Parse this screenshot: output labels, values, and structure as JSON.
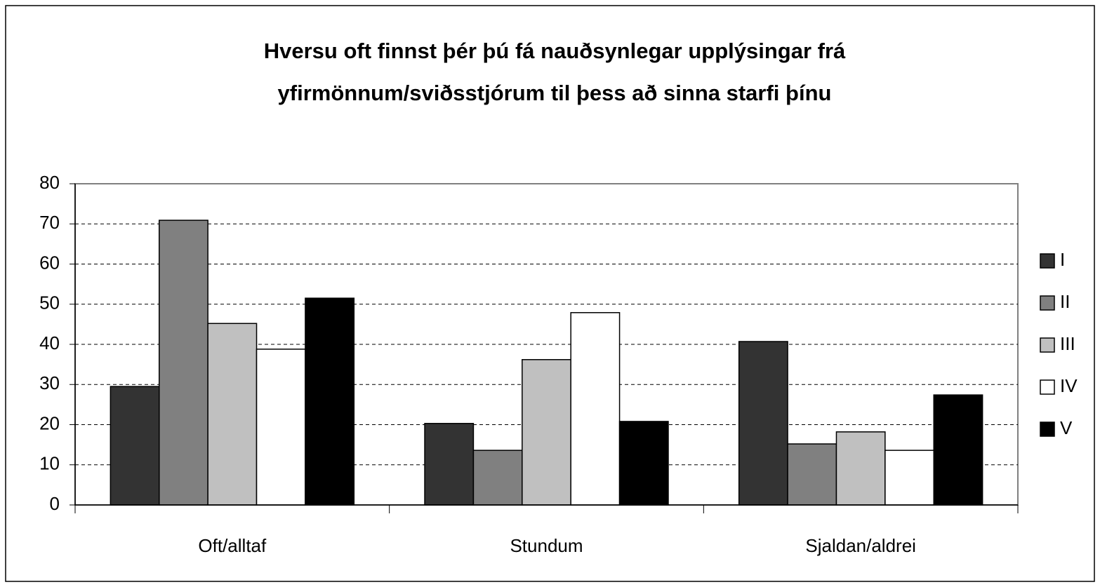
{
  "chart_data": {
    "type": "bar",
    "title": [
      "Hversu oft finnst þér þú fá nauðsynlegar upplýsingar frá",
      "yfirmönnum/sviðsstjórum til þess að sinna starfi þínu"
    ],
    "categories": [
      "Oft/alltaf",
      "Stundum",
      "Sjaldan/aldrei"
    ],
    "series": [
      {
        "name": "I",
        "color": "#333333",
        "values": [
          29.5,
          20.3,
          40.7
        ]
      },
      {
        "name": "II",
        "color": "#808080",
        "values": [
          70.9,
          13.6,
          15.2
        ]
      },
      {
        "name": "III",
        "color": "#c0c0c0",
        "values": [
          45.2,
          36.2,
          18.2
        ]
      },
      {
        "name": "IV",
        "color": "#ffffff",
        "values": [
          38.8,
          47.9,
          13.6
        ]
      },
      {
        "name": "V",
        "color": "#000000",
        "values": [
          51.5,
          20.8,
          27.4
        ]
      }
    ],
    "ylim": [
      0,
      80
    ],
    "yticks": [
      0,
      10,
      20,
      30,
      40,
      50,
      60,
      70,
      80
    ],
    "grid": true,
    "legend": "right"
  }
}
